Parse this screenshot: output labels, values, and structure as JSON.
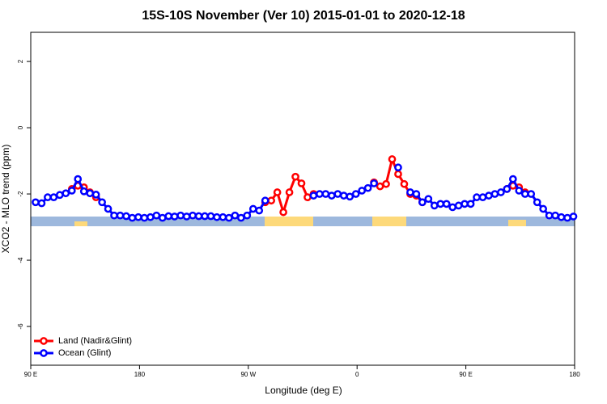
{
  "chart_data": {
    "type": "line",
    "title": "15S-10S November (Ver 10)   2015-01-01 to 2020-12-18",
    "xlabel": "Longitude (deg E)",
    "ylabel": "XCO2 - MLO trend (ppm)",
    "xlim": [
      90,
      540
    ],
    "xticks": [
      {
        "value": 90,
        "label": "90 E"
      },
      {
        "value": 180,
        "label": "180"
      },
      {
        "value": 270,
        "label": "90 W"
      },
      {
        "value": 360,
        "label": "0"
      },
      {
        "value": 450,
        "label": "90 E"
      },
      {
        "value": 540,
        "label": "180"
      }
    ],
    "ylim": [
      -7.17,
      2.88
    ],
    "yticks": [
      -6,
      -4,
      -2,
      0,
      2
    ],
    "legend": "bottomleft",
    "x": [
      94,
      99,
      104,
      109,
      114,
      119,
      124,
      129,
      134,
      139,
      144,
      149,
      154,
      159,
      164,
      169,
      174,
      179,
      184,
      189,
      194,
      199,
      204,
      209,
      214,
      219,
      224,
      229,
      234,
      239,
      244,
      249,
      254,
      259,
      264,
      269,
      274,
      279,
      284,
      289,
      294,
      299,
      304,
      309,
      314,
      319,
      324,
      329,
      334,
      339,
      344,
      349,
      354,
      359,
      364,
      369,
      374,
      379,
      384,
      389,
      394,
      399,
      404,
      409,
      414,
      419,
      424,
      429,
      434,
      439,
      444,
      449,
      454,
      459,
      464,
      469,
      474,
      479,
      484,
      489,
      494,
      499,
      504,
      509,
      514,
      519,
      524,
      529,
      534,
      539
    ],
    "series": [
      {
        "name": "Land (Nadir&Glint)",
        "color": "#ff0000",
        "values": [
          null,
          null,
          null,
          null,
          null,
          null,
          -1.85,
          -1.75,
          -1.8,
          -1.95,
          -2.1,
          null,
          null,
          null,
          null,
          null,
          null,
          null,
          null,
          null,
          null,
          null,
          null,
          null,
          null,
          null,
          null,
          null,
          null,
          null,
          null,
          null,
          null,
          null,
          null,
          null,
          null,
          null,
          -2.25,
          -2.2,
          -1.95,
          -2.55,
          -1.95,
          -1.48,
          -1.68,
          -2.1,
          -2.0,
          null,
          null,
          null,
          null,
          null,
          null,
          null,
          null,
          null,
          -1.65,
          -1.77,
          -1.7,
          -0.95,
          -1.4,
          -1.7,
          -2.0,
          -2.05,
          -2.25,
          null,
          null,
          null,
          null,
          null,
          null,
          null,
          null,
          null,
          null,
          null,
          null,
          null,
          -1.85,
          -1.75,
          -1.8,
          -1.95,
          null,
          null,
          null,
          null,
          null,
          null,
          null,
          null
        ]
      },
      {
        "name": "Ocean (Glint)",
        "color": "#0000ff",
        "values": [
          -2.25,
          -2.28,
          -2.1,
          -2.1,
          -2.03,
          -1.98,
          -1.9,
          -1.55,
          -1.92,
          -1.98,
          -2.02,
          -2.25,
          -2.45,
          -2.65,
          -2.65,
          -2.67,
          -2.72,
          -2.7,
          -2.72,
          -2.7,
          -2.65,
          -2.72,
          -2.67,
          -2.68,
          -2.65,
          -2.68,
          -2.65,
          -2.67,
          -2.67,
          -2.67,
          -2.7,
          -2.7,
          -2.72,
          -2.65,
          -2.72,
          -2.65,
          -2.45,
          -2.5,
          -2.2,
          null,
          null,
          null,
          null,
          null,
          null,
          null,
          -2.05,
          -2.0,
          -2.0,
          -2.05,
          -2.0,
          -2.05,
          -2.08,
          -2.0,
          -1.9,
          -1.82,
          -1.68,
          null,
          null,
          null,
          -1.2,
          null,
          -1.95,
          -2.0,
          -2.25,
          -2.15,
          -2.35,
          -2.3,
          -2.3,
          -2.4,
          -2.35,
          -2.3,
          -2.3,
          -2.1,
          -2.1,
          -2.05,
          -2.0,
          -1.95,
          -1.85,
          -1.55,
          -1.9,
          -2.0,
          -2.0,
          -2.25,
          -2.45,
          -2.65,
          -2.65,
          -2.7,
          -2.72,
          -2.68
        ]
      }
    ]
  }
}
